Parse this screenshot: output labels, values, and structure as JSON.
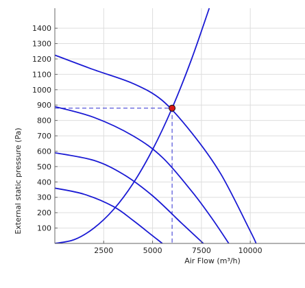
{
  "chart_data": {
    "type": "line",
    "xlabel": "Air Flow (m³/h)",
    "ylabel": "External static pressure (Pa)",
    "xlim": [
      0,
      12800
    ],
    "ylim": [
      0,
      1530
    ],
    "x_ticks": [
      2500,
      5000,
      7500,
      10000
    ],
    "x_tick_labels": [
      "2500",
      "5000",
      "7500",
      "10000"
    ],
    "y_ticks": [
      100,
      200,
      300,
      400,
      500,
      600,
      700,
      800,
      900,
      1000,
      1100,
      1200,
      1300,
      1400
    ],
    "y_tick_labels": [
      "100",
      "200",
      "300",
      "400",
      "500",
      "600",
      "700",
      "800",
      "900",
      "1000",
      "1100",
      "1200",
      "1300",
      "1400"
    ],
    "grid": true,
    "colors": {
      "curve": "#1a1ad4",
      "operating_point": "#d81818",
      "grid": "#dddddd",
      "axis": "#666666",
      "guide": "#2a2ad0"
    },
    "series": [
      {
        "x": [
          0,
          2000,
          4000,
          5500,
          7000,
          8500,
          10000,
          10300
        ],
        "y": [
          1225,
          1130,
          1040,
          930,
          720,
          450,
          80,
          0
        ]
      },
      {
        "x": [
          0,
          2000,
          4000,
          5500,
          7000,
          8000,
          8900
        ],
        "y": [
          890,
          820,
          700,
          560,
          340,
          170,
          0
        ]
      },
      {
        "x": [
          0,
          2000,
          3500,
          5000,
          6500,
          7600
        ],
        "y": [
          590,
          540,
          450,
          310,
          130,
          0
        ]
      },
      {
        "x": [
          0,
          1500,
          3000,
          4000,
          5000,
          5500
        ],
        "y": [
          360,
          320,
          240,
          150,
          50,
          0
        ]
      },
      {
        "x": [
          0,
          1000,
          2000,
          3000,
          4000,
          5000,
          6000,
          7000,
          7900
        ],
        "y": [
          0,
          25,
          100,
          220,
          390,
          610,
          880,
          1200,
          1530
        ]
      }
    ],
    "operating_point": {
      "x": 6000,
      "y": 880
    }
  }
}
